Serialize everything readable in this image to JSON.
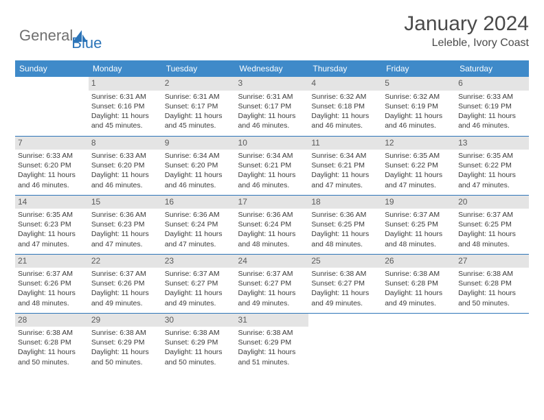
{
  "brand": {
    "part1": "General",
    "part2": "Blue"
  },
  "title": "January 2024",
  "location": "Leleble, Ivory Coast",
  "colors": {
    "header_bg": "#3f8ac9",
    "daynum_bg": "#e4e4e4",
    "row_border": "#2b74b8",
    "brand_gray": "#6f6f6f",
    "brand_blue": "#2b74b8"
  },
  "weekdays": [
    "Sunday",
    "Monday",
    "Tuesday",
    "Wednesday",
    "Thursday",
    "Friday",
    "Saturday"
  ],
  "weeks": [
    [
      null,
      {
        "n": "1",
        "sr": "Sunrise: 6:31 AM",
        "ss": "Sunset: 6:16 PM",
        "d1": "Daylight: 11 hours",
        "d2": "and 45 minutes."
      },
      {
        "n": "2",
        "sr": "Sunrise: 6:31 AM",
        "ss": "Sunset: 6:17 PM",
        "d1": "Daylight: 11 hours",
        "d2": "and 45 minutes."
      },
      {
        "n": "3",
        "sr": "Sunrise: 6:31 AM",
        "ss": "Sunset: 6:17 PM",
        "d1": "Daylight: 11 hours",
        "d2": "and 46 minutes."
      },
      {
        "n": "4",
        "sr": "Sunrise: 6:32 AM",
        "ss": "Sunset: 6:18 PM",
        "d1": "Daylight: 11 hours",
        "d2": "and 46 minutes."
      },
      {
        "n": "5",
        "sr": "Sunrise: 6:32 AM",
        "ss": "Sunset: 6:19 PM",
        "d1": "Daylight: 11 hours",
        "d2": "and 46 minutes."
      },
      {
        "n": "6",
        "sr": "Sunrise: 6:33 AM",
        "ss": "Sunset: 6:19 PM",
        "d1": "Daylight: 11 hours",
        "d2": "and 46 minutes."
      }
    ],
    [
      {
        "n": "7",
        "sr": "Sunrise: 6:33 AM",
        "ss": "Sunset: 6:20 PM",
        "d1": "Daylight: 11 hours",
        "d2": "and 46 minutes."
      },
      {
        "n": "8",
        "sr": "Sunrise: 6:33 AM",
        "ss": "Sunset: 6:20 PM",
        "d1": "Daylight: 11 hours",
        "d2": "and 46 minutes."
      },
      {
        "n": "9",
        "sr": "Sunrise: 6:34 AM",
        "ss": "Sunset: 6:20 PM",
        "d1": "Daylight: 11 hours",
        "d2": "and 46 minutes."
      },
      {
        "n": "10",
        "sr": "Sunrise: 6:34 AM",
        "ss": "Sunset: 6:21 PM",
        "d1": "Daylight: 11 hours",
        "d2": "and 46 minutes."
      },
      {
        "n": "11",
        "sr": "Sunrise: 6:34 AM",
        "ss": "Sunset: 6:21 PM",
        "d1": "Daylight: 11 hours",
        "d2": "and 47 minutes."
      },
      {
        "n": "12",
        "sr": "Sunrise: 6:35 AM",
        "ss": "Sunset: 6:22 PM",
        "d1": "Daylight: 11 hours",
        "d2": "and 47 minutes."
      },
      {
        "n": "13",
        "sr": "Sunrise: 6:35 AM",
        "ss": "Sunset: 6:22 PM",
        "d1": "Daylight: 11 hours",
        "d2": "and 47 minutes."
      }
    ],
    [
      {
        "n": "14",
        "sr": "Sunrise: 6:35 AM",
        "ss": "Sunset: 6:23 PM",
        "d1": "Daylight: 11 hours",
        "d2": "and 47 minutes."
      },
      {
        "n": "15",
        "sr": "Sunrise: 6:36 AM",
        "ss": "Sunset: 6:23 PM",
        "d1": "Daylight: 11 hours",
        "d2": "and 47 minutes."
      },
      {
        "n": "16",
        "sr": "Sunrise: 6:36 AM",
        "ss": "Sunset: 6:24 PM",
        "d1": "Daylight: 11 hours",
        "d2": "and 47 minutes."
      },
      {
        "n": "17",
        "sr": "Sunrise: 6:36 AM",
        "ss": "Sunset: 6:24 PM",
        "d1": "Daylight: 11 hours",
        "d2": "and 48 minutes."
      },
      {
        "n": "18",
        "sr": "Sunrise: 6:36 AM",
        "ss": "Sunset: 6:25 PM",
        "d1": "Daylight: 11 hours",
        "d2": "and 48 minutes."
      },
      {
        "n": "19",
        "sr": "Sunrise: 6:37 AM",
        "ss": "Sunset: 6:25 PM",
        "d1": "Daylight: 11 hours",
        "d2": "and 48 minutes."
      },
      {
        "n": "20",
        "sr": "Sunrise: 6:37 AM",
        "ss": "Sunset: 6:25 PM",
        "d1": "Daylight: 11 hours",
        "d2": "and 48 minutes."
      }
    ],
    [
      {
        "n": "21",
        "sr": "Sunrise: 6:37 AM",
        "ss": "Sunset: 6:26 PM",
        "d1": "Daylight: 11 hours",
        "d2": "and 48 minutes."
      },
      {
        "n": "22",
        "sr": "Sunrise: 6:37 AM",
        "ss": "Sunset: 6:26 PM",
        "d1": "Daylight: 11 hours",
        "d2": "and 49 minutes."
      },
      {
        "n": "23",
        "sr": "Sunrise: 6:37 AM",
        "ss": "Sunset: 6:27 PM",
        "d1": "Daylight: 11 hours",
        "d2": "and 49 minutes."
      },
      {
        "n": "24",
        "sr": "Sunrise: 6:37 AM",
        "ss": "Sunset: 6:27 PM",
        "d1": "Daylight: 11 hours",
        "d2": "and 49 minutes."
      },
      {
        "n": "25",
        "sr": "Sunrise: 6:38 AM",
        "ss": "Sunset: 6:27 PM",
        "d1": "Daylight: 11 hours",
        "d2": "and 49 minutes."
      },
      {
        "n": "26",
        "sr": "Sunrise: 6:38 AM",
        "ss": "Sunset: 6:28 PM",
        "d1": "Daylight: 11 hours",
        "d2": "and 49 minutes."
      },
      {
        "n": "27",
        "sr": "Sunrise: 6:38 AM",
        "ss": "Sunset: 6:28 PM",
        "d1": "Daylight: 11 hours",
        "d2": "and 50 minutes."
      }
    ],
    [
      {
        "n": "28",
        "sr": "Sunrise: 6:38 AM",
        "ss": "Sunset: 6:28 PM",
        "d1": "Daylight: 11 hours",
        "d2": "and 50 minutes."
      },
      {
        "n": "29",
        "sr": "Sunrise: 6:38 AM",
        "ss": "Sunset: 6:29 PM",
        "d1": "Daylight: 11 hours",
        "d2": "and 50 minutes."
      },
      {
        "n": "30",
        "sr": "Sunrise: 6:38 AM",
        "ss": "Sunset: 6:29 PM",
        "d1": "Daylight: 11 hours",
        "d2": "and 50 minutes."
      },
      {
        "n": "31",
        "sr": "Sunrise: 6:38 AM",
        "ss": "Sunset: 6:29 PM",
        "d1": "Daylight: 11 hours",
        "d2": "and 51 minutes."
      },
      null,
      null,
      null
    ]
  ]
}
